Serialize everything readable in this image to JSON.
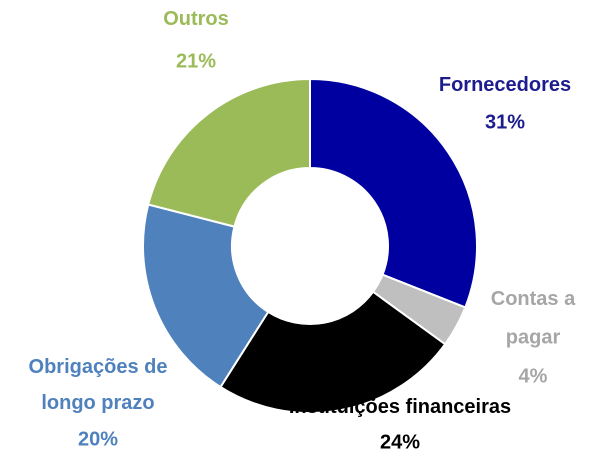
{
  "chart_data": {
    "type": "donut",
    "categories": [
      "Fornecedores",
      "Contas a pagar",
      "Instituições financeiras",
      "Obrigações de longo prazo",
      "Outros"
    ],
    "values": [
      31,
      4,
      24,
      20,
      21
    ],
    "value_labels": [
      "31%",
      "4%",
      "24%",
      "20%",
      "21%"
    ],
    "colors": [
      "#0000A0",
      "#BFBFBF",
      "#000000",
      "#4F81BD",
      "#9BBB59"
    ],
    "label_colors": [
      "#1C1C8E",
      "#A6A6A6",
      "#000000",
      "#4F81BD",
      "#9BBB59"
    ]
  }
}
